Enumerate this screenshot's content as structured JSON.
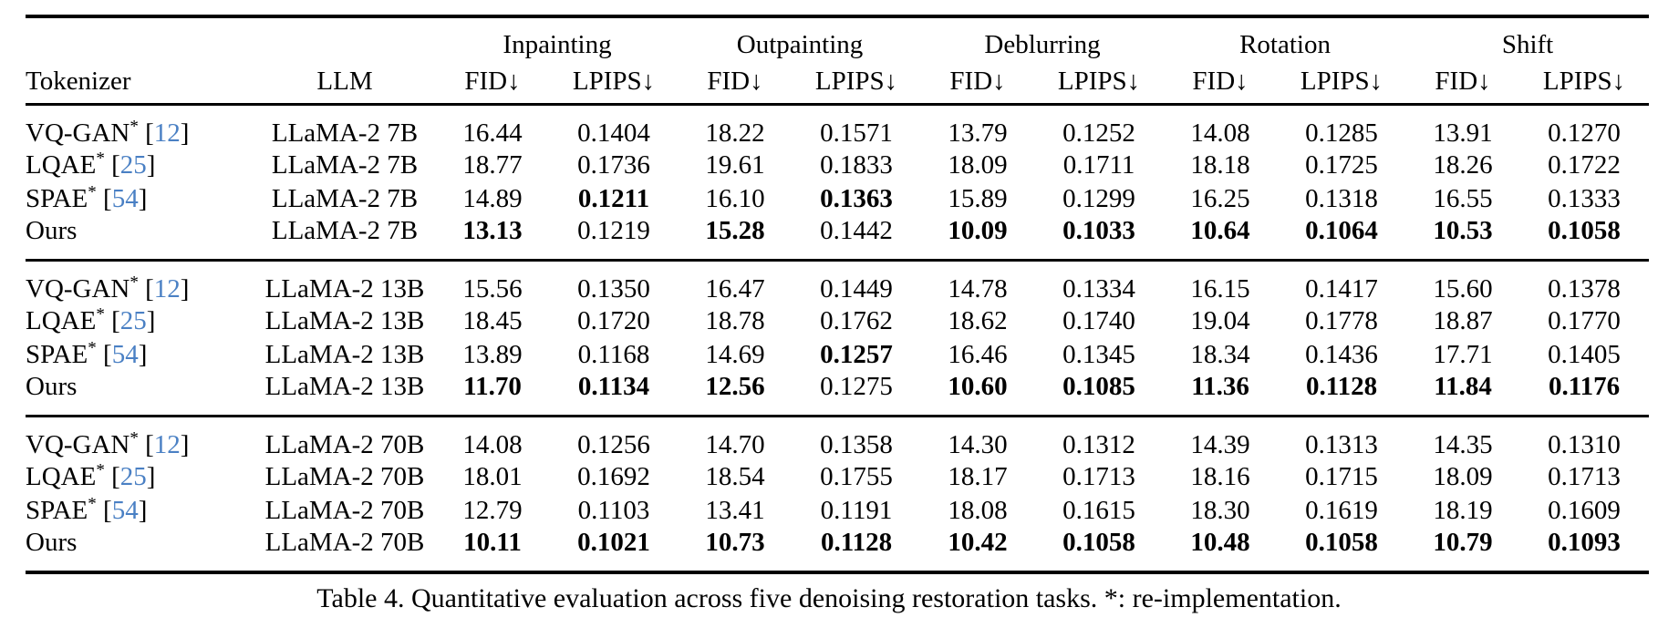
{
  "table": {
    "caption": "Table 4. Quantitative evaluation across five denoising restoration tasks. *: re-implementation.",
    "cite_color": "#4a80c4",
    "col_headers": {
      "tokenizer": "Tokenizer",
      "llm": "LLM",
      "fid": "FID↓",
      "lpips": "LPIPS↓"
    },
    "task_groups": [
      "Inpainting",
      "Outpainting",
      "Deblurring",
      "Rotation",
      "Shift"
    ],
    "groups": [
      {
        "rows": [
          {
            "tokenizer": "VQ-GAN",
            "sup": "*",
            "cite": "12",
            "llm": "LLaMA-2 7B",
            "values": [
              "16.44",
              "0.1404",
              "18.22",
              "0.1571",
              "13.79",
              "0.1252",
              "14.08",
              "0.1285",
              "13.91",
              "0.1270"
            ],
            "bold": [
              0,
              0,
              0,
              0,
              0,
              0,
              0,
              0,
              0,
              0
            ]
          },
          {
            "tokenizer": "LQAE",
            "sup": "*",
            "cite": "25",
            "llm": "LLaMA-2 7B",
            "values": [
              "18.77",
              "0.1736",
              "19.61",
              "0.1833",
              "18.09",
              "0.1711",
              "18.18",
              "0.1725",
              "18.26",
              "0.1722"
            ],
            "bold": [
              0,
              0,
              0,
              0,
              0,
              0,
              0,
              0,
              0,
              0
            ]
          },
          {
            "tokenizer": "SPAE",
            "sup": "*",
            "cite": "54",
            "llm": "LLaMA-2 7B",
            "values": [
              "14.89",
              "0.1211",
              "16.10",
              "0.1363",
              "15.89",
              "0.1299",
              "16.25",
              "0.1318",
              "16.55",
              "0.1333"
            ],
            "bold": [
              0,
              1,
              0,
              1,
              0,
              0,
              0,
              0,
              0,
              0
            ]
          },
          {
            "tokenizer": "Ours",
            "sup": null,
            "cite": null,
            "llm": "LLaMA-2 7B",
            "values": [
              "13.13",
              "0.1219",
              "15.28",
              "0.1442",
              "10.09",
              "0.1033",
              "10.64",
              "0.1064",
              "10.53",
              "0.1058"
            ],
            "bold": [
              1,
              0,
              1,
              0,
              1,
              1,
              1,
              1,
              1,
              1
            ]
          }
        ]
      },
      {
        "rows": [
          {
            "tokenizer": "VQ-GAN",
            "sup": "*",
            "cite": "12",
            "llm": "LLaMA-2 13B",
            "values": [
              "15.56",
              "0.1350",
              "16.47",
              "0.1449",
              "14.78",
              "0.1334",
              "16.15",
              "0.1417",
              "15.60",
              "0.1378"
            ],
            "bold": [
              0,
              0,
              0,
              0,
              0,
              0,
              0,
              0,
              0,
              0
            ]
          },
          {
            "tokenizer": "LQAE",
            "sup": "*",
            "cite": "25",
            "llm": "LLaMA-2 13B",
            "values": [
              "18.45",
              "0.1720",
              "18.78",
              "0.1762",
              "18.62",
              "0.1740",
              "19.04",
              "0.1778",
              "18.87",
              "0.1770"
            ],
            "bold": [
              0,
              0,
              0,
              0,
              0,
              0,
              0,
              0,
              0,
              0
            ]
          },
          {
            "tokenizer": "SPAE",
            "sup": "*",
            "cite": "54",
            "llm": "LLaMA-2 13B",
            "values": [
              "13.89",
              "0.1168",
              "14.69",
              "0.1257",
              "16.46",
              "0.1345",
              "18.34",
              "0.1436",
              "17.71",
              "0.1405"
            ],
            "bold": [
              0,
              0,
              0,
              1,
              0,
              0,
              0,
              0,
              0,
              0
            ]
          },
          {
            "tokenizer": "Ours",
            "sup": null,
            "cite": null,
            "llm": "LLaMA-2 13B",
            "values": [
              "11.70",
              "0.1134",
              "12.56",
              "0.1275",
              "10.60",
              "0.1085",
              "11.36",
              "0.1128",
              "11.84",
              "0.1176"
            ],
            "bold": [
              1,
              1,
              1,
              0,
              1,
              1,
              1,
              1,
              1,
              1
            ]
          }
        ]
      },
      {
        "rows": [
          {
            "tokenizer": "VQ-GAN",
            "sup": "*",
            "cite": "12",
            "llm": "LLaMA-2 70B",
            "values": [
              "14.08",
              "0.1256",
              "14.70",
              "0.1358",
              "14.30",
              "0.1312",
              "14.39",
              "0.1313",
              "14.35",
              "0.1310"
            ],
            "bold": [
              0,
              0,
              0,
              0,
              0,
              0,
              0,
              0,
              0,
              0
            ]
          },
          {
            "tokenizer": "LQAE",
            "sup": "*",
            "cite": "25",
            "llm": "LLaMA-2 70B",
            "values": [
              "18.01",
              "0.1692",
              "18.54",
              "0.1755",
              "18.17",
              "0.1713",
              "18.16",
              "0.1715",
              "18.09",
              "0.1713"
            ],
            "bold": [
              0,
              0,
              0,
              0,
              0,
              0,
              0,
              0,
              0,
              0
            ]
          },
          {
            "tokenizer": "SPAE",
            "sup": "*",
            "cite": "54",
            "llm": "LLaMA-2 70B",
            "values": [
              "12.79",
              "0.1103",
              "13.41",
              "0.1191",
              "18.08",
              "0.1615",
              "18.30",
              "0.1619",
              "18.19",
              "0.1609"
            ],
            "bold": [
              0,
              0,
              0,
              0,
              0,
              0,
              0,
              0,
              0,
              0
            ]
          },
          {
            "tokenizer": "Ours",
            "sup": null,
            "cite": null,
            "llm": "LLaMA-2 70B",
            "values": [
              "10.11",
              "0.1021",
              "10.73",
              "0.1128",
              "10.42",
              "0.1058",
              "10.48",
              "0.1058",
              "10.79",
              "0.1093"
            ],
            "bold": [
              1,
              1,
              1,
              1,
              1,
              1,
              1,
              1,
              1,
              1
            ]
          }
        ]
      }
    ]
  }
}
